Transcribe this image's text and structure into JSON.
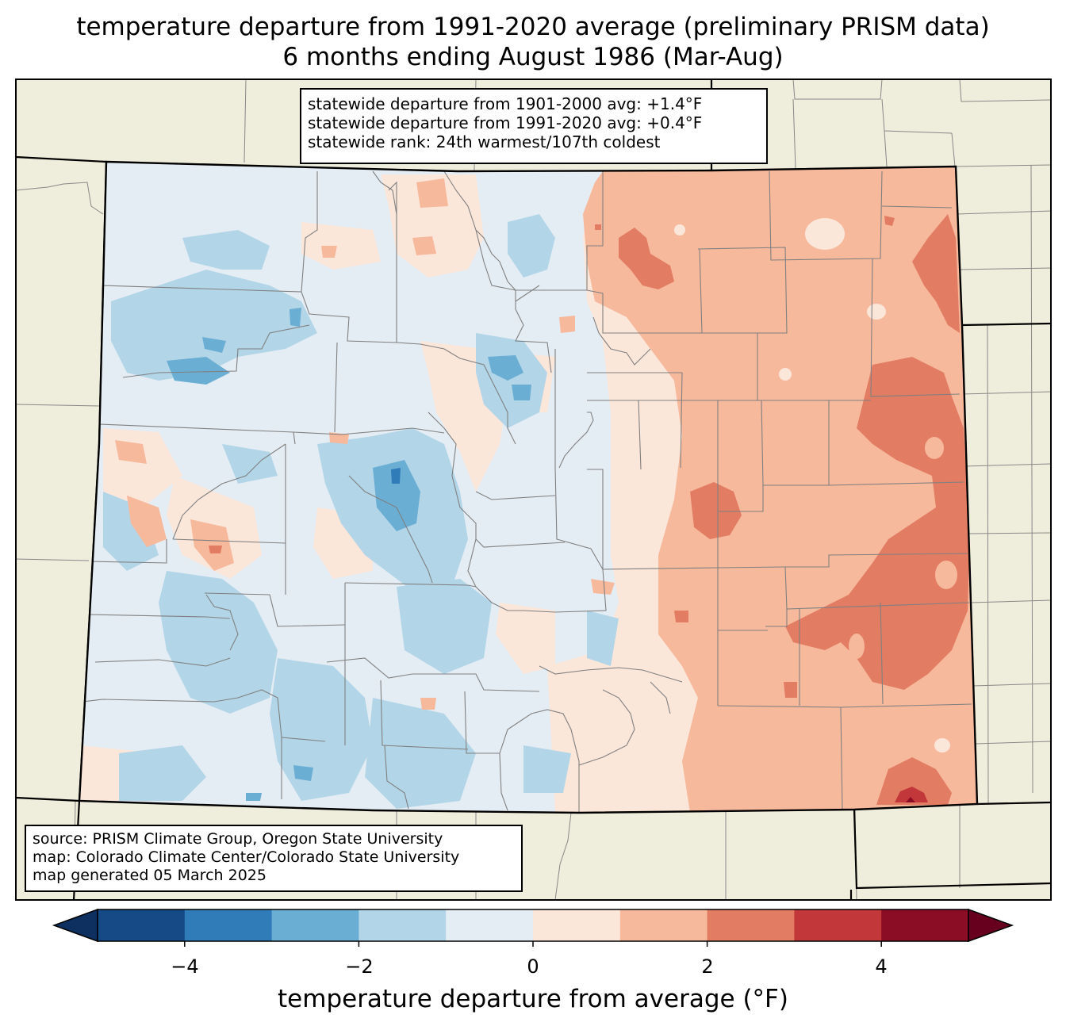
{
  "title": {
    "line1": "temperature departure from 1991-2020 average (preliminary PRISM data)",
    "line2": "6 months ending August 1986 (Mar-Aug)"
  },
  "stats": {
    "line1": "statewide departure from 1901-2000 avg: +1.4°F",
    "line2": "statewide departure from 1991-2020 avg: +0.4°F",
    "line3": "statewide rank: 24th warmest/107th coldest"
  },
  "source": {
    "line1": "source: PRISM Climate Group, Oregon State University",
    "line2": "map: Colorado Climate Center/Colorado State University",
    "line3": "map generated 05 March 2025"
  },
  "colorbar": {
    "label": "temperature departure from average (°F)",
    "ticks": [
      "−4",
      "−2",
      "0",
      "2",
      "4"
    ],
    "bins": [
      {
        "from": -5,
        "to": -4,
        "color": "#154a86"
      },
      {
        "from": -4,
        "to": -3,
        "color": "#2f7cb9"
      },
      {
        "from": -3,
        "to": -2,
        "color": "#6aaed4"
      },
      {
        "from": -2,
        "to": -1,
        "color": "#b3d5e8"
      },
      {
        "from": -1,
        "to": 0,
        "color": "#e5edf4"
      },
      {
        "from": 0,
        "to": 1,
        "color": "#fbe6da"
      },
      {
        "from": 1,
        "to": 2,
        "color": "#f7b99c"
      },
      {
        "from": 2,
        "to": 3,
        "color": "#e27c63"
      },
      {
        "from": 3,
        "to": 4,
        "color": "#c1373a"
      },
      {
        "from": 4,
        "to": 5,
        "color": "#8b0c25"
      }
    ],
    "under_color": "#0d3060",
    "over_color": "#67001f"
  },
  "map_colors": {
    "land_outside": "#efeddb",
    "state_border": "#000000",
    "county_line": "#888888"
  }
}
